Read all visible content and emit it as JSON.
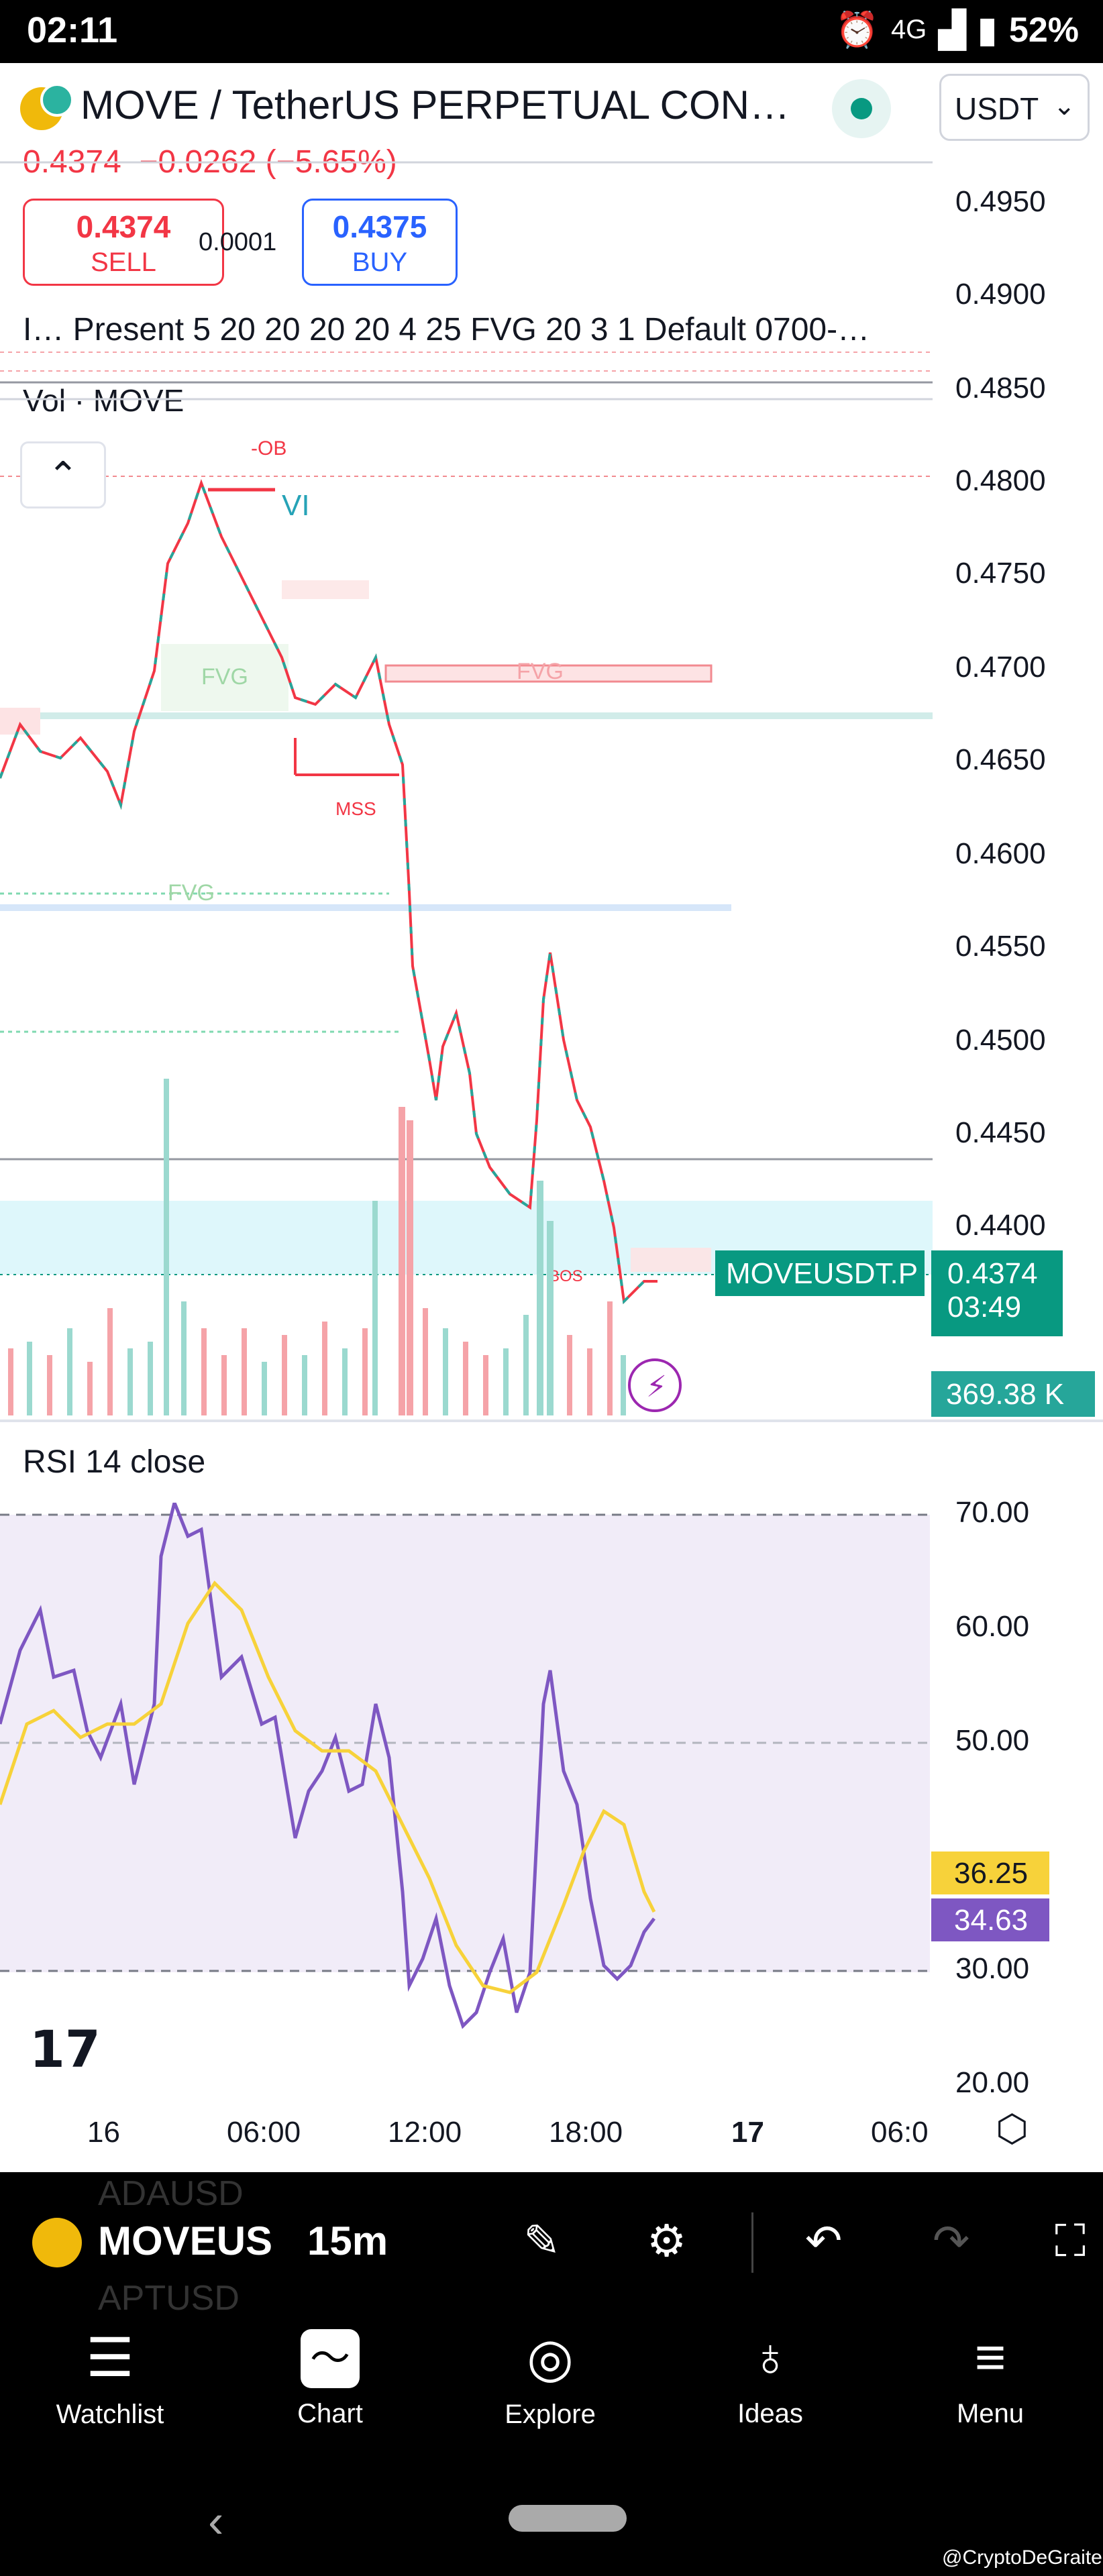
{
  "status_bar": {
    "time": "02:11",
    "network": "4G",
    "battery": "52%"
  },
  "header": {
    "title": "MOVE / TetherUS PERPETUAL CON…",
    "currency": "USDT",
    "last_price": "0.4374",
    "change": "−0.0262 (−5.65%)"
  },
  "trade": {
    "sell_price": "0.4374",
    "sell_label": "SELL",
    "spread": "0.0001",
    "buy_price": "0.4375",
    "buy_label": "BUY"
  },
  "indicator_line": "I…   Present 5 20 20 20 20 4 25 FVG 20 3 1 Default 0700-…",
  "vol_label": "Vol · MOVE",
  "price_axis": [
    "0.4950",
    "0.4900",
    "0.4850",
    "0.4800",
    "0.4750",
    "0.4700",
    "0.4650",
    "0.4600",
    "0.4550",
    "0.4500",
    "0.4450",
    "0.4400"
  ],
  "price_tags": {
    "symbol": "MOVEUSDT.P",
    "current_price": "0.4374",
    "countdown": "03:49",
    "volume": "369.38 K"
  },
  "annotations": {
    "ob": "-OB",
    "vi": "VI",
    "fvg": "FVG",
    "mss": "MSS",
    "bos": "BOS"
  },
  "rsi": {
    "title": "RSI 14 close",
    "axis": [
      "70.00",
      "60.00",
      "50.00",
      "30.00",
      "20.00"
    ],
    "value_ma": "36.25",
    "value_rsi": "34.63"
  },
  "time_axis": [
    "16",
    "06:00",
    "12:00",
    "18:00",
    "17",
    "06:0"
  ],
  "toolbar": {
    "symbol": "MOVEUS",
    "interval": "15m",
    "ghost_above": "ADAUSD",
    "ghost_below": "APTUSD"
  },
  "bottom_nav": [
    "Watchlist",
    "Chart",
    "Explore",
    "Ideas",
    "Menu"
  ],
  "watermark": "@CryptoDeGraite",
  "colors": {
    "up": "#26a69a",
    "down": "#ef5350",
    "rsi": "#7e57c2",
    "rsi_ma": "#f7d23a",
    "accent": "#089981"
  },
  "chart_data": {
    "type": "line",
    "title": "RSI 14 close",
    "x": [
      "16",
      "06:00",
      "12:00",
      "18:00"
    ],
    "series": [],
    "ylim": [
      20,
      72
    ]
  }
}
